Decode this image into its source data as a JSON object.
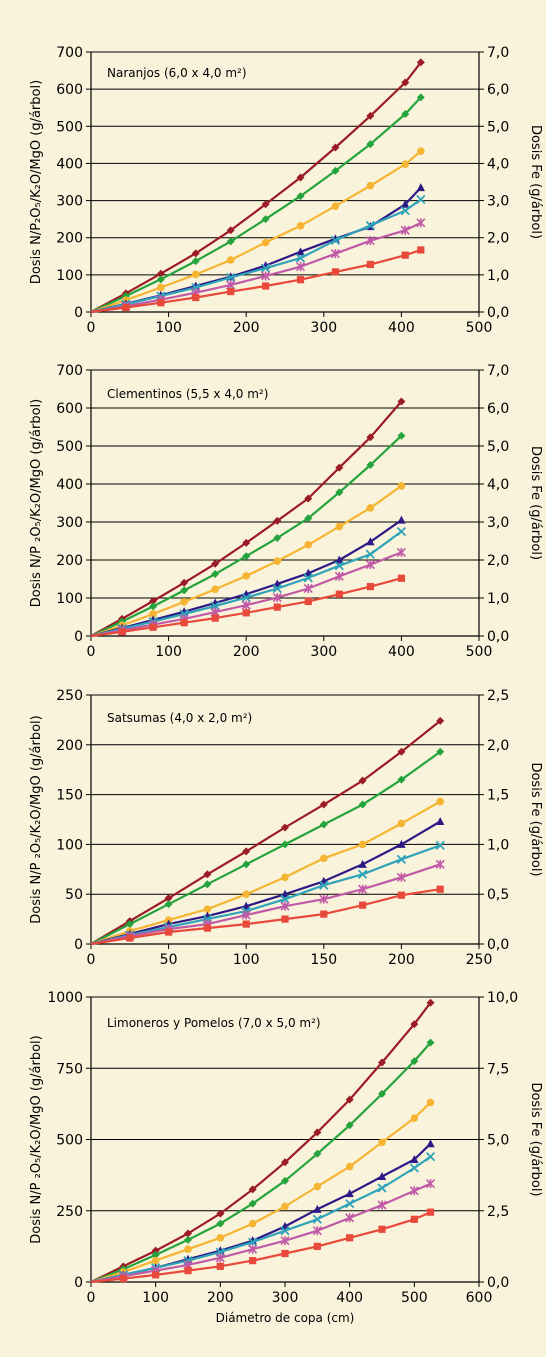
{
  "series_colors": [
    "#9b1b26",
    "#25a33c",
    "#f5b431",
    "#2d1a86",
    "#2fa3b9",
    "#c05aa6",
    "#e8493a"
  ],
  "series_markers": [
    "diamond",
    "diamond",
    "circle",
    "triangle",
    "x",
    "star",
    "square"
  ],
  "xlabel": "Diámetro de copa (cm)",
  "chart_data": [
    {
      "type": "line",
      "title": "Naranjos (6,0 x 4,0 m²)",
      "ylabel": "Dosis N/P₂O₅/K₂O/MgO (g/árbol)",
      "y2label": "Dosis Fe (g/árbol)",
      "xlim": [
        0,
        500
      ],
      "ylim": [
        0,
        700
      ],
      "y2lim": [
        0,
        7
      ],
      "xticks": [
        "0",
        "100",
        "200",
        "300",
        "400",
        "500"
      ],
      "yticks": [
        "0",
        "100",
        "200",
        "300",
        "400",
        "500",
        "600",
        "700"
      ],
      "y2ticks": [
        "0,0",
        "1,0",
        "2,0",
        "3,0",
        "4,0",
        "5,0",
        "6,0",
        "7,0"
      ],
      "x": [
        0,
        45,
        90,
        135,
        180,
        225,
        270,
        315,
        360,
        405,
        425
      ],
      "series": [
        {
          "values": [
            0,
            50,
            103,
            158,
            220,
            290,
            362,
            443,
            528,
            618,
            672
          ]
        },
        {
          "values": [
            0,
            43,
            88,
            137,
            190,
            250,
            312,
            380,
            452,
            533,
            578
          ]
        },
        {
          "values": [
            0,
            32,
            66,
            101,
            140,
            187,
            232,
            285,
            340,
            398,
            433
          ]
        },
        {
          "values": [
            0,
            22,
            45,
            70,
            95,
            125,
            162,
            197,
            230,
            290,
            335
          ]
        },
        {
          "values": [
            0,
            21,
            43,
            66,
            93,
            118,
            145,
            193,
            233,
            273,
            303
          ]
        },
        {
          "values": [
            0,
            16,
            33,
            52,
            73,
            97,
            122,
            157,
            192,
            220,
            240
          ]
        },
        {
          "values": [
            0,
            12,
            25,
            39,
            55,
            70,
            87,
            108,
            128,
            153,
            167
          ]
        }
      ]
    },
    {
      "type": "line",
      "title": "Clementinos (5,5 x 4,0 m²)",
      "ylabel": "Dosis N/P ₂O₅/K₂O/MgO (g/árbol)",
      "y2label": "Dosis Fe (g/árbol)",
      "xlim": [
        0,
        500
      ],
      "ylim": [
        0,
        700
      ],
      "y2lim": [
        0,
        7
      ],
      "xticks": [
        "0",
        "100",
        "200",
        "300",
        "400",
        "500"
      ],
      "yticks": [
        "0",
        "100",
        "200",
        "300",
        "400",
        "500",
        "600",
        "700"
      ],
      "y2ticks": [
        "0,0",
        "1,0",
        "2,0",
        "3,0",
        "4,0",
        "5,0",
        "6,0",
        "7,0"
      ],
      "x": [
        0,
        40,
        80,
        120,
        160,
        200,
        240,
        280,
        320,
        360,
        400
      ],
      "series": [
        {
          "values": [
            0,
            45,
            92,
            140,
            190,
            245,
            303,
            362,
            443,
            523,
            617
          ]
        },
        {
          "values": [
            0,
            38,
            78,
            120,
            163,
            210,
            258,
            310,
            378,
            450,
            527
          ]
        },
        {
          "values": [
            0,
            28,
            58,
            90,
            123,
            158,
            197,
            240,
            288,
            337,
            395
          ]
        },
        {
          "values": [
            0,
            21,
            42,
            64,
            87,
            110,
            137,
            165,
            200,
            248,
            305
          ]
        },
        {
          "values": [
            0,
            19,
            38,
            58,
            79,
            101,
            125,
            153,
            185,
            215,
            275
          ]
        },
        {
          "values": [
            0,
            15,
            30,
            45,
            63,
            81,
            101,
            125,
            157,
            188,
            220
          ]
        },
        {
          "values": [
            0,
            11,
            23,
            35,
            47,
            61,
            76,
            91,
            110,
            130,
            152
          ]
        }
      ]
    },
    {
      "type": "line",
      "title": "Satsumas (4,0 x 2,0 m²)",
      "ylabel": "Dosis N/P ₂O₅/K₂O/MgO (g/árbol)",
      "y2label": "Dosis Fe (g/árbol)",
      "xlim": [
        0,
        250
      ],
      "ylim": [
        0,
        250
      ],
      "y2lim": [
        0,
        2.5
      ],
      "xticks": [
        "0",
        "50",
        "100",
        "150",
        "200",
        "250"
      ],
      "yticks": [
        "0",
        "50",
        "100",
        "150",
        "200",
        "250"
      ],
      "y2ticks": [
        "0,0",
        "0,5",
        "1,0",
        "1,5",
        "2,0",
        "2,5"
      ],
      "x": [
        0,
        25,
        50,
        75,
        100,
        125,
        150,
        175,
        200,
        225
      ],
      "series": [
        {
          "values": [
            0,
            23,
            46,
            70,
            93,
            117,
            140,
            164,
            193,
            224
          ]
        },
        {
          "values": [
            0,
            20,
            40,
            60,
            80,
            100,
            120,
            140,
            165,
            193
          ]
        },
        {
          "values": [
            0,
            13,
            24,
            35,
            50,
            67,
            86,
            100,
            121,
            143
          ]
        },
        {
          "values": [
            0,
            10,
            20,
            28,
            38,
            50,
            63,
            80,
            100,
            123
          ]
        },
        {
          "values": [
            0,
            9,
            17,
            25,
            33,
            45,
            59,
            70,
            85,
            99
          ]
        },
        {
          "values": [
            0,
            8,
            15,
            20,
            29,
            38,
            45,
            55,
            67,
            80
          ]
        },
        {
          "values": [
            0,
            6,
            12,
            16,
            20,
            25,
            30,
            39,
            49,
            55
          ]
        }
      ]
    },
    {
      "type": "line",
      "title": "Limoneros y Pomelos (7,0 x 5,0 m²)",
      "ylabel": "Dosis N/P ₂O₅/K₂O/MgO (g/árbol)",
      "y2label": "Dosis Fe (g/árbol)",
      "xlabel": "Diámetro de copa (cm)",
      "xlim": [
        0,
        600
      ],
      "ylim": [
        0,
        1000
      ],
      "y2lim": [
        0,
        10
      ],
      "xticks": [
        "0",
        "100",
        "200",
        "300",
        "400",
        "500",
        "600"
      ],
      "yticks": [
        "0",
        "250",
        "500",
        "750",
        "1000"
      ],
      "y2ticks": [
        "0,0",
        "2,5",
        "5,0",
        "7,5",
        "10,0"
      ],
      "x": [
        0,
        50,
        100,
        150,
        200,
        250,
        300,
        350,
        400,
        450,
        500,
        525
      ],
      "series": [
        {
          "values": [
            0,
            55,
            110,
            170,
            240,
            325,
            420,
            525,
            640,
            770,
            905,
            980
          ]
        },
        {
          "values": [
            0,
            45,
            95,
            148,
            205,
            275,
            355,
            450,
            550,
            660,
            775,
            840
          ]
        },
        {
          "values": [
            0,
            35,
            75,
            115,
            155,
            205,
            265,
            335,
            405,
            490,
            575,
            630
          ]
        },
        {
          "values": [
            0,
            25,
            50,
            80,
            110,
            145,
            195,
            255,
            310,
            370,
            430,
            485
          ]
        },
        {
          "values": [
            0,
            25,
            50,
            75,
            105,
            140,
            180,
            220,
            275,
            330,
            400,
            440
          ]
        },
        {
          "values": [
            0,
            20,
            40,
            60,
            85,
            115,
            145,
            180,
            225,
            270,
            320,
            345
          ]
        },
        {
          "values": [
            0,
            12,
            25,
            40,
            55,
            75,
            100,
            125,
            155,
            185,
            220,
            245
          ]
        }
      ]
    }
  ]
}
